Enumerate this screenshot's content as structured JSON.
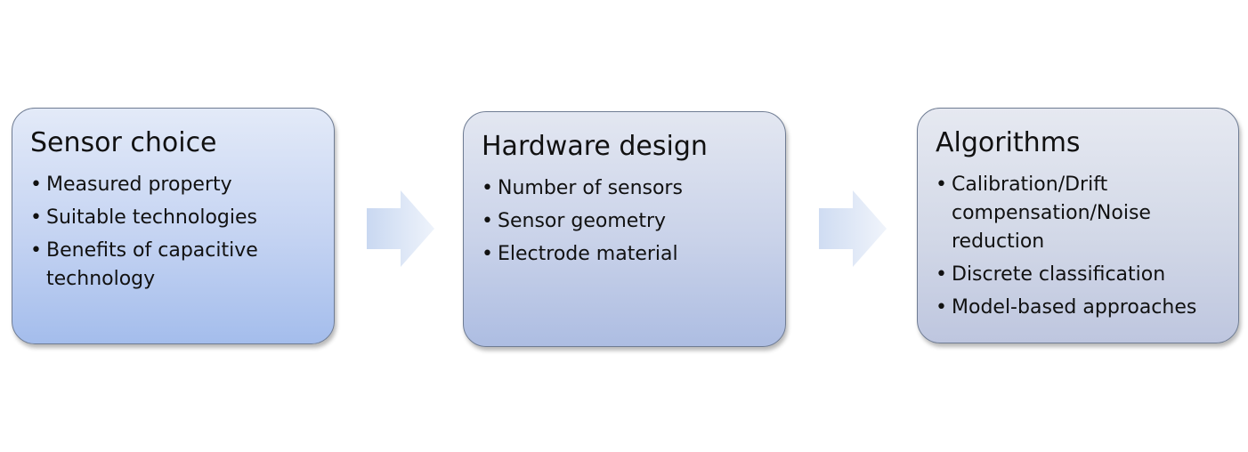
{
  "diagram": {
    "steps": [
      {
        "title": "Sensor choice",
        "items": [
          "Measured property",
          "Suitable technologies",
          "Benefits of capacitive technology"
        ]
      },
      {
        "title": "Hardware design",
        "items": [
          "Number of sensors",
          "Sensor geometry",
          "Electrode material"
        ]
      },
      {
        "title": "Algorithms",
        "items": [
          "Calibration/Drift compensation/Noise reduction",
          "Discrete classification",
          "Model-based approaches"
        ]
      }
    ],
    "colors": {
      "box_border": "#6f7c93",
      "box_1_fill": "#c4d3f2",
      "box_2_fill": "#c9d2e9",
      "box_3_fill": "#d2d8e7",
      "arrow_fill": "#dde7f6",
      "text": "#111111"
    },
    "icons": {
      "connector": "arrow-right-icon"
    }
  }
}
